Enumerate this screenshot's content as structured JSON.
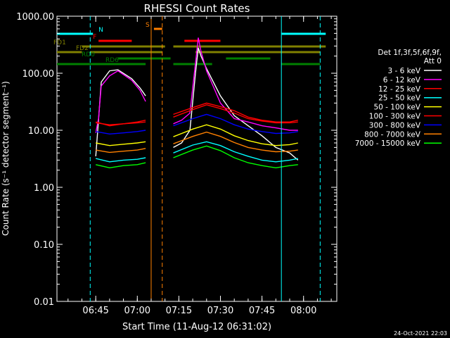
{
  "chart_data": {
    "type": "line",
    "title": "RHESSI Count Rates",
    "xlabel": "Start Time (11-Aug-12 06:31:02)",
    "ylabel": "Count Rate (s⁻¹ detector segment⁻¹)",
    "yscale": "log",
    "ylim": [
      0.01,
      1000
    ],
    "xlim": [
      "06:31",
      "08:12"
    ],
    "x_ticks": [
      "06:45",
      "07:00",
      "07:15",
      "07:30",
      "07:45",
      "08:00"
    ],
    "y_ticks": [
      "0.01",
      "0.10",
      "1.00",
      "10.00",
      "100.00",
      "1000.00"
    ],
    "legend_position": "right",
    "legend_header": [
      "Det 1f,3f,5f,6f,9f,",
      "Att 0"
    ],
    "series": [
      {
        "name": "3 - 6 keV",
        "color": "#ffffff",
        "x": [
          "06:45",
          "06:46",
          "06:47",
          "06:50",
          "06:53",
          "06:58",
          "07:01",
          "07:03",
          "07:13",
          "07:16",
          "07:19",
          "07:21",
          "07:22",
          "07:23",
          "07:25",
          "07:30",
          "07:35",
          "07:40",
          "07:45",
          "07:50",
          "07:55",
          "07:58"
        ],
        "y": [
          3.5,
          15,
          70,
          110,
          115,
          80,
          55,
          40,
          5,
          6,
          10,
          100,
          280,
          200,
          120,
          40,
          18,
          12,
          8,
          5,
          4,
          3
        ]
      },
      {
        "name": "6 - 12 keV",
        "color": "#ff00ff",
        "x": [
          "06:45",
          "06:46",
          "06:47",
          "06:50",
          "06:53",
          "06:58",
          "07:01",
          "07:03",
          "07:13",
          "07:16",
          "07:19",
          "07:21",
          "07:22",
          "07:23",
          "07:25",
          "07:30",
          "07:35",
          "07:40",
          "07:45",
          "07:50",
          "07:55",
          "07:58"
        ],
        "y": [
          9,
          16,
          60,
          90,
          110,
          75,
          50,
          32,
          13,
          15,
          20,
          150,
          420,
          240,
          110,
          30,
          16,
          14,
          12,
          11,
          10,
          10
        ]
      },
      {
        "name": "12 - 25 keV",
        "color": "#ff0000",
        "x": [
          "06:45",
          "06:50",
          "06:55",
          "07:00",
          "07:03",
          "07:13",
          "07:20",
          "07:25",
          "07:30",
          "07:35",
          "07:40",
          "07:45",
          "07:50",
          "07:55",
          "07:58"
        ],
        "y": [
          14,
          12,
          13,
          14,
          15,
          19,
          25,
          30,
          26,
          22,
          17,
          15,
          14,
          14,
          15
        ]
      },
      {
        "name": "25 - 50 keV",
        "color": "#00ffff",
        "x": [
          "06:45",
          "06:50",
          "06:55",
          "07:00",
          "07:03",
          "07:13",
          "07:20",
          "07:25",
          "07:30",
          "07:35",
          "07:40",
          "07:45",
          "07:50",
          "07:55",
          "07:58"
        ],
        "y": [
          3.2,
          2.8,
          3.0,
          3.1,
          3.3,
          4.0,
          5.5,
          6.3,
          5.4,
          4.2,
          3.5,
          3.0,
          2.8,
          3.0,
          3.2
        ]
      },
      {
        "name": "50 - 100 keV",
        "color": "#ffff00",
        "x": [
          "06:45",
          "06:50",
          "06:55",
          "07:00",
          "07:03",
          "07:13",
          "07:20",
          "07:25",
          "07:30",
          "07:35",
          "07:40",
          "07:45",
          "07:50",
          "07:55",
          "07:58"
        ],
        "y": [
          6.0,
          5.4,
          5.7,
          6.0,
          6.3,
          7.7,
          10.5,
          12.5,
          10.5,
          8.0,
          6.6,
          5.8,
          5.4,
          5.6,
          6.0
        ]
      },
      {
        "name": "100 - 300 keV",
        "color": "#ff0000",
        "x": [
          "06:45",
          "06:50",
          "06:55",
          "07:00",
          "07:03",
          "07:13",
          "07:20",
          "07:25",
          "07:30",
          "07:35",
          "07:40",
          "07:45",
          "07:50",
          "07:55",
          "07:58"
        ],
        "y": [
          13.5,
          12.5,
          13,
          13.5,
          14,
          17,
          23,
          28,
          24,
          20,
          16,
          14.5,
          13.5,
          13.5,
          14
        ]
      },
      {
        "name": "300 - 800 keV",
        "color": "#0000ff",
        "x": [
          "06:45",
          "06:50",
          "06:55",
          "07:00",
          "07:03",
          "07:13",
          "07:20",
          "07:25",
          "07:30",
          "07:35",
          "07:40",
          "07:45",
          "07:50",
          "07:55",
          "07:58"
        ],
        "y": [
          9.5,
          8.6,
          9.0,
          9.5,
          10,
          12,
          16,
          19,
          16,
          12.5,
          10.5,
          9.5,
          8.8,
          9.0,
          9.5
        ]
      },
      {
        "name": "800 - 7000 keV",
        "color": "#ff8000",
        "x": [
          "06:45",
          "06:50",
          "06:55",
          "07:00",
          "07:03",
          "07:13",
          "07:20",
          "07:25",
          "07:30",
          "07:35",
          "07:40",
          "07:45",
          "07:50",
          "07:55",
          "07:58"
        ],
        "y": [
          4.5,
          4.1,
          4.3,
          4.5,
          4.8,
          5.8,
          7.8,
          9.3,
          7.8,
          6.1,
          5.0,
          4.5,
          4.2,
          4.3,
          4.5
        ]
      },
      {
        "name": "7000 - 15000 keV",
        "color": "#00ff00",
        "x": [
          "06:45",
          "06:50",
          "06:55",
          "07:00",
          "07:03",
          "07:13",
          "07:20",
          "07:25",
          "07:30",
          "07:35",
          "07:40",
          "07:45",
          "07:50",
          "07:55",
          "07:58"
        ],
        "y": [
          2.5,
          2.2,
          2.4,
          2.5,
          2.7,
          3.3,
          4.5,
          5.3,
          4.4,
          3.3,
          2.7,
          2.4,
          2.2,
          2.4,
          2.5
        ]
      }
    ],
    "flag_bars": [
      {
        "label": "N",
        "color": "#00ffff",
        "segments": [
          [
            "06:31",
            "06:44"
          ],
          [
            "07:52",
            "08:08"
          ]
        ]
      },
      {
        "label": "S",
        "color": "#ff8000",
        "segments": [
          [
            "07:06",
            "07:09"
          ]
        ]
      },
      {
        "label": "F",
        "color": "#ff0000",
        "segments": [
          [
            "06:46",
            "06:58"
          ],
          [
            "07:17",
            "07:30"
          ]
        ]
      },
      {
        "label": "FD1",
        "color": "#808000",
        "segments": [
          [
            "06:40",
            "07:10"
          ],
          [
            "07:13",
            "08:08"
          ]
        ]
      },
      {
        "label": "FD2",
        "color": "#808000",
        "segments": [
          [
            "06:31",
            "06:40"
          ],
          [
            "06:43",
            "07:09"
          ],
          [
            "07:21",
            "08:06"
          ]
        ]
      },
      {
        "label": "RD0",
        "color": "#008000",
        "segments": [
          [
            "06:53",
            "07:12"
          ],
          [
            "07:32",
            "07:48"
          ]
        ]
      },
      {
        "label": "RD6",
        "color": "#008000",
        "segments": [
          [
            "06:31",
            "07:03"
          ],
          [
            "07:13",
            "07:27"
          ],
          [
            "07:52",
            "08:06"
          ]
        ]
      }
    ],
    "vertical_markers": [
      {
        "x": "06:43",
        "color": "#00ffff",
        "style": "dashed"
      },
      {
        "x": "07:05",
        "color": "#ff8000",
        "style": "solid"
      },
      {
        "x": "07:09",
        "color": "#ff8000",
        "style": "dashed"
      },
      {
        "x": "07:52",
        "color": "#00ffff",
        "style": "solid"
      },
      {
        "x": "08:06",
        "color": "#00ffff",
        "style": "dashed"
      }
    ],
    "timestamp": "24-Oct-2021 22:03"
  }
}
